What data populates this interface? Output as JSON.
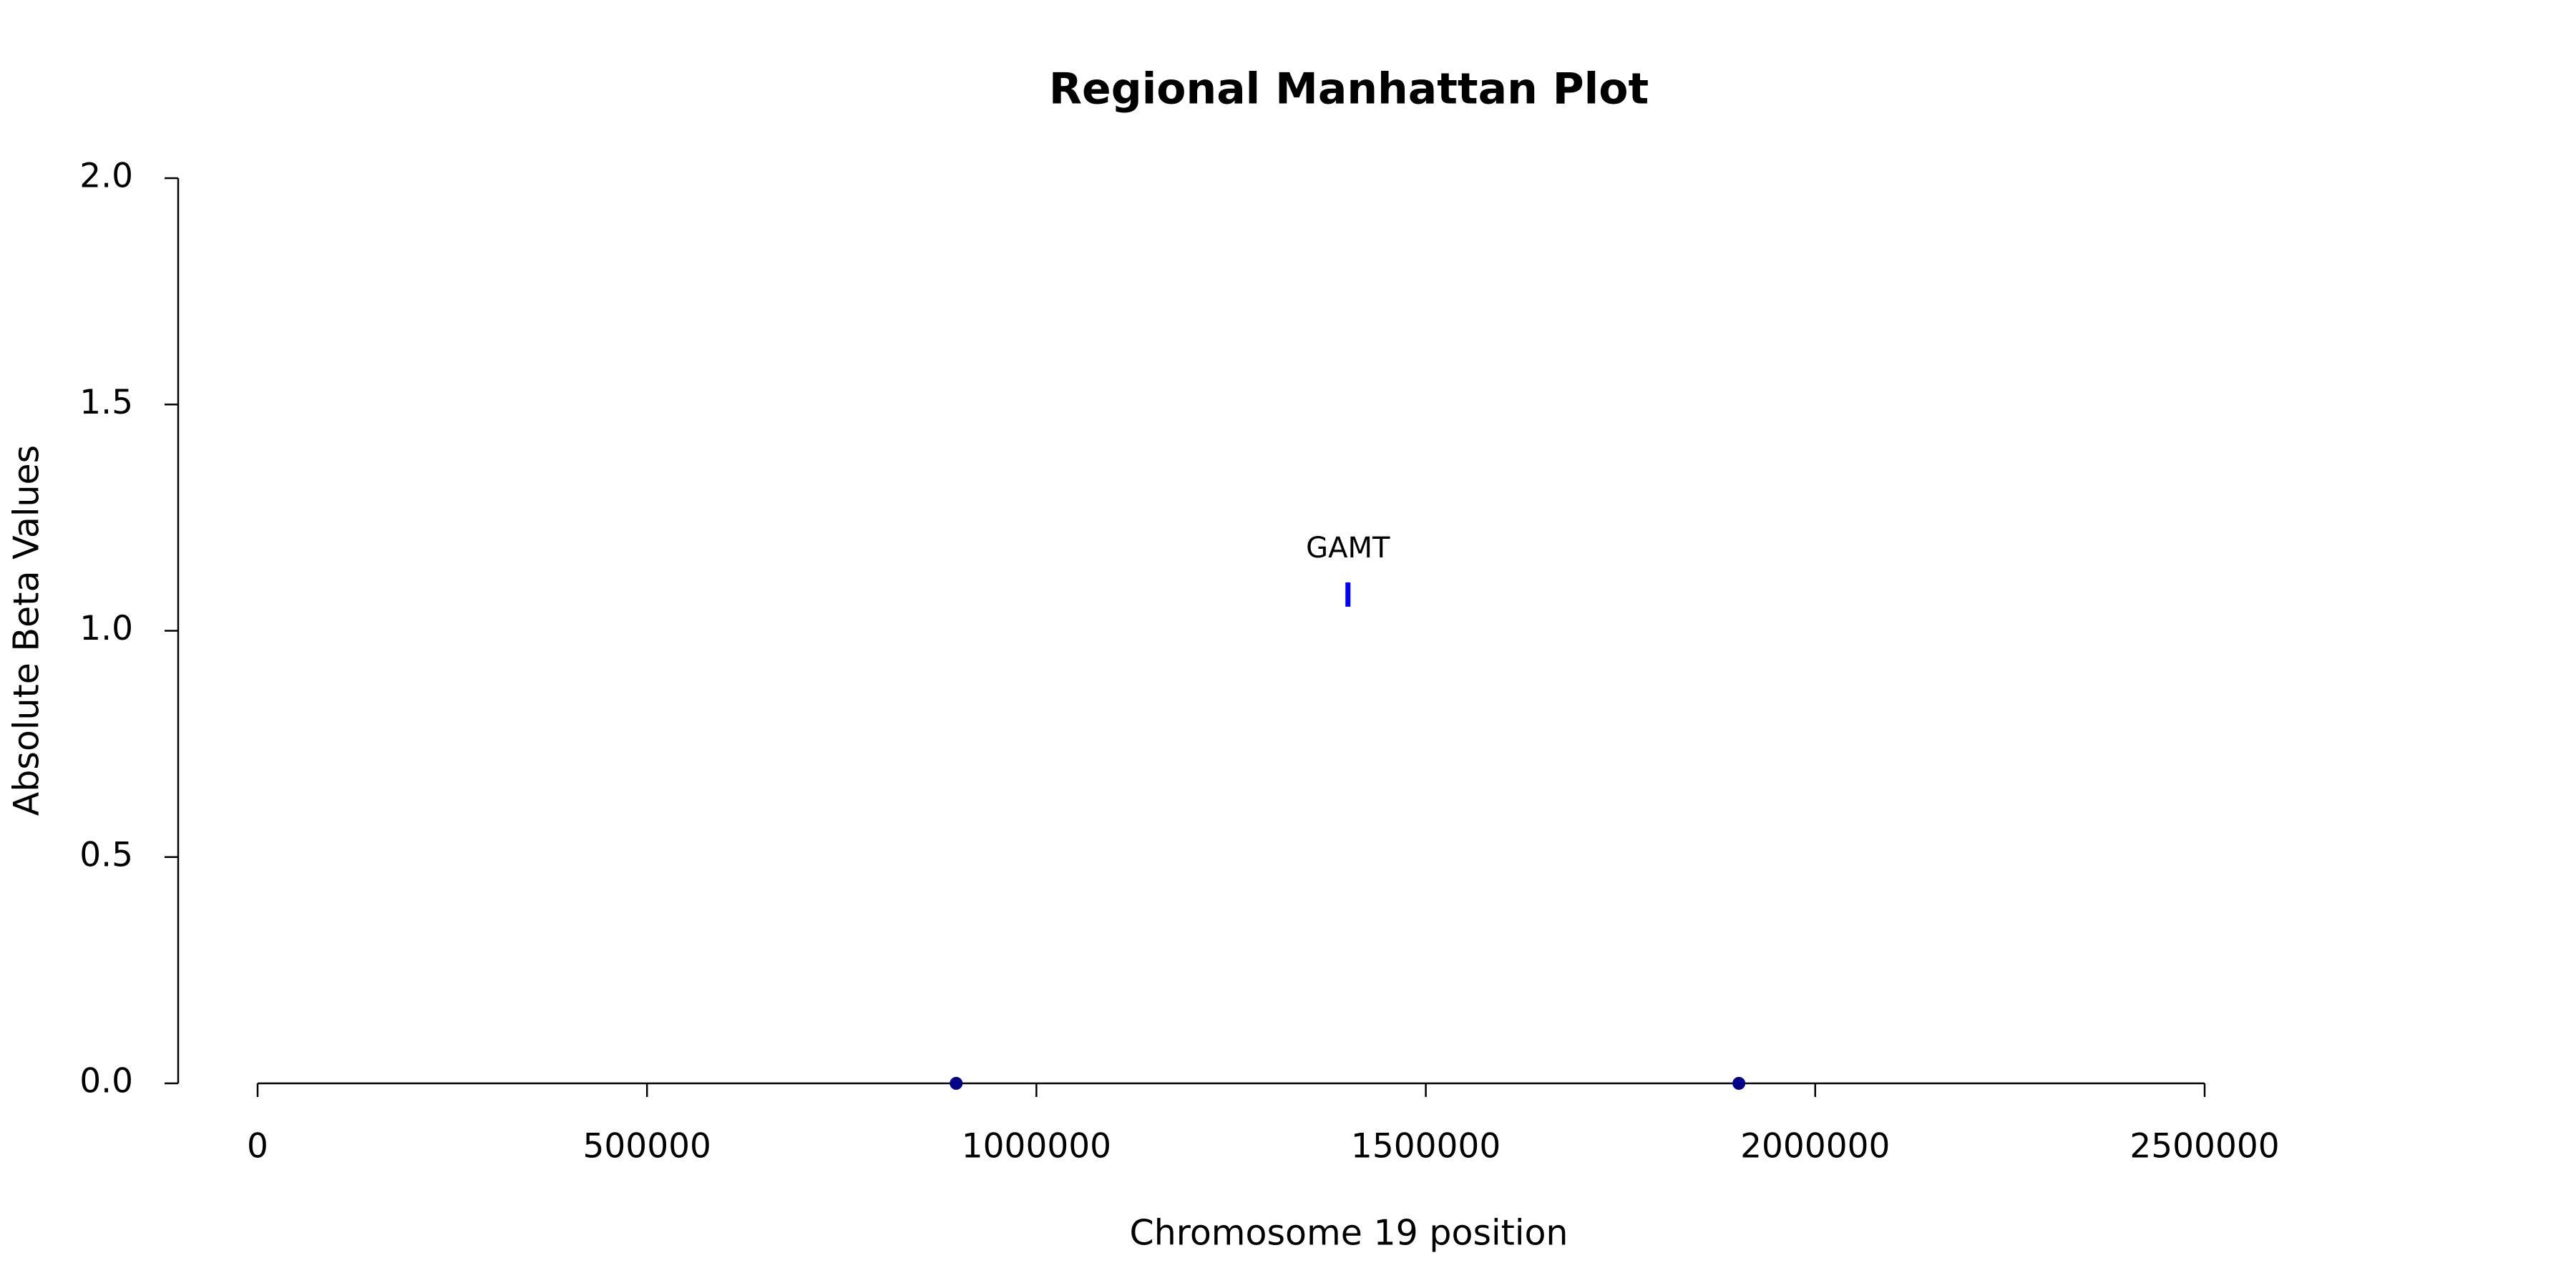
{
  "chart_data": {
    "type": "scatter",
    "title": "Regional Manhattan Plot",
    "x_label": "Chromosome 19 position",
    "y_label": "Absolute Beta Values",
    "xlim": [
      0,
      2500000
    ],
    "ylim": [
      0,
      2
    ],
    "xticks": [
      0,
      500000,
      1000000,
      1500000,
      2000000,
      2500000
    ],
    "yticks": [
      {
        "value": 0,
        "label": "0.0"
      },
      0.5,
      {
        "value": 1,
        "label": "1.0"
      },
      1.5,
      {
        "value": 2,
        "label": "2.0"
      }
    ],
    "grid": false,
    "series": [
      {
        "color": "#00008b",
        "marker": "dot",
        "x": [
          897000,
          1902000
        ],
        "values": [
          0,
          0
        ]
      },
      {
        "color": "#0000ff",
        "marker": "bar",
        "x": [
          1400000
        ],
        "values": [
          1.08
        ],
        "labels": [
          "GAMT"
        ]
      }
    ]
  }
}
